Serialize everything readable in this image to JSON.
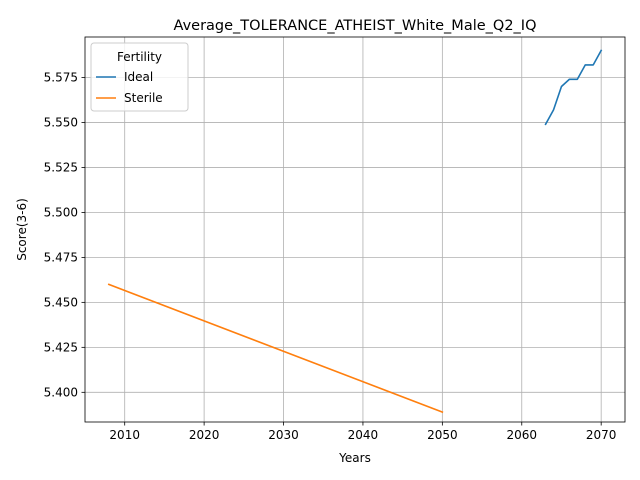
{
  "chart_data": {
    "type": "line",
    "title": "Average_TOLERANCE_ATHEIST_White_Male_Q2_IQ",
    "xlabel": "Years",
    "ylabel": "Score(3-6)",
    "xlim": [
      2005,
      2073
    ],
    "ylim": [
      5.3835,
      5.5975
    ],
    "xticks": [
      2010,
      2020,
      2030,
      2040,
      2050,
      2060,
      2070
    ],
    "yticks": [
      5.4,
      5.425,
      5.45,
      5.475,
      5.5,
      5.525,
      5.55,
      5.575
    ],
    "ytick_labels": [
      "5.400",
      "5.425",
      "5.450",
      "5.475",
      "5.500",
      "5.525",
      "5.550",
      "5.575"
    ],
    "grid": true,
    "legend": {
      "title": "Fertility",
      "placement": "upper-left"
    },
    "series": [
      {
        "name": "Ideal",
        "color": "#1f77b4",
        "x": [
          2063,
          2064,
          2065,
          2066,
          2067,
          2068,
          2069,
          2070
        ],
        "y": [
          5.549,
          5.557,
          5.57,
          5.574,
          5.574,
          5.582,
          5.582,
          5.59
        ]
      },
      {
        "name": "Sterile",
        "color": "#ff7f0e",
        "x": [
          2008,
          2050
        ],
        "y": [
          5.46,
          5.389
        ]
      }
    ]
  }
}
